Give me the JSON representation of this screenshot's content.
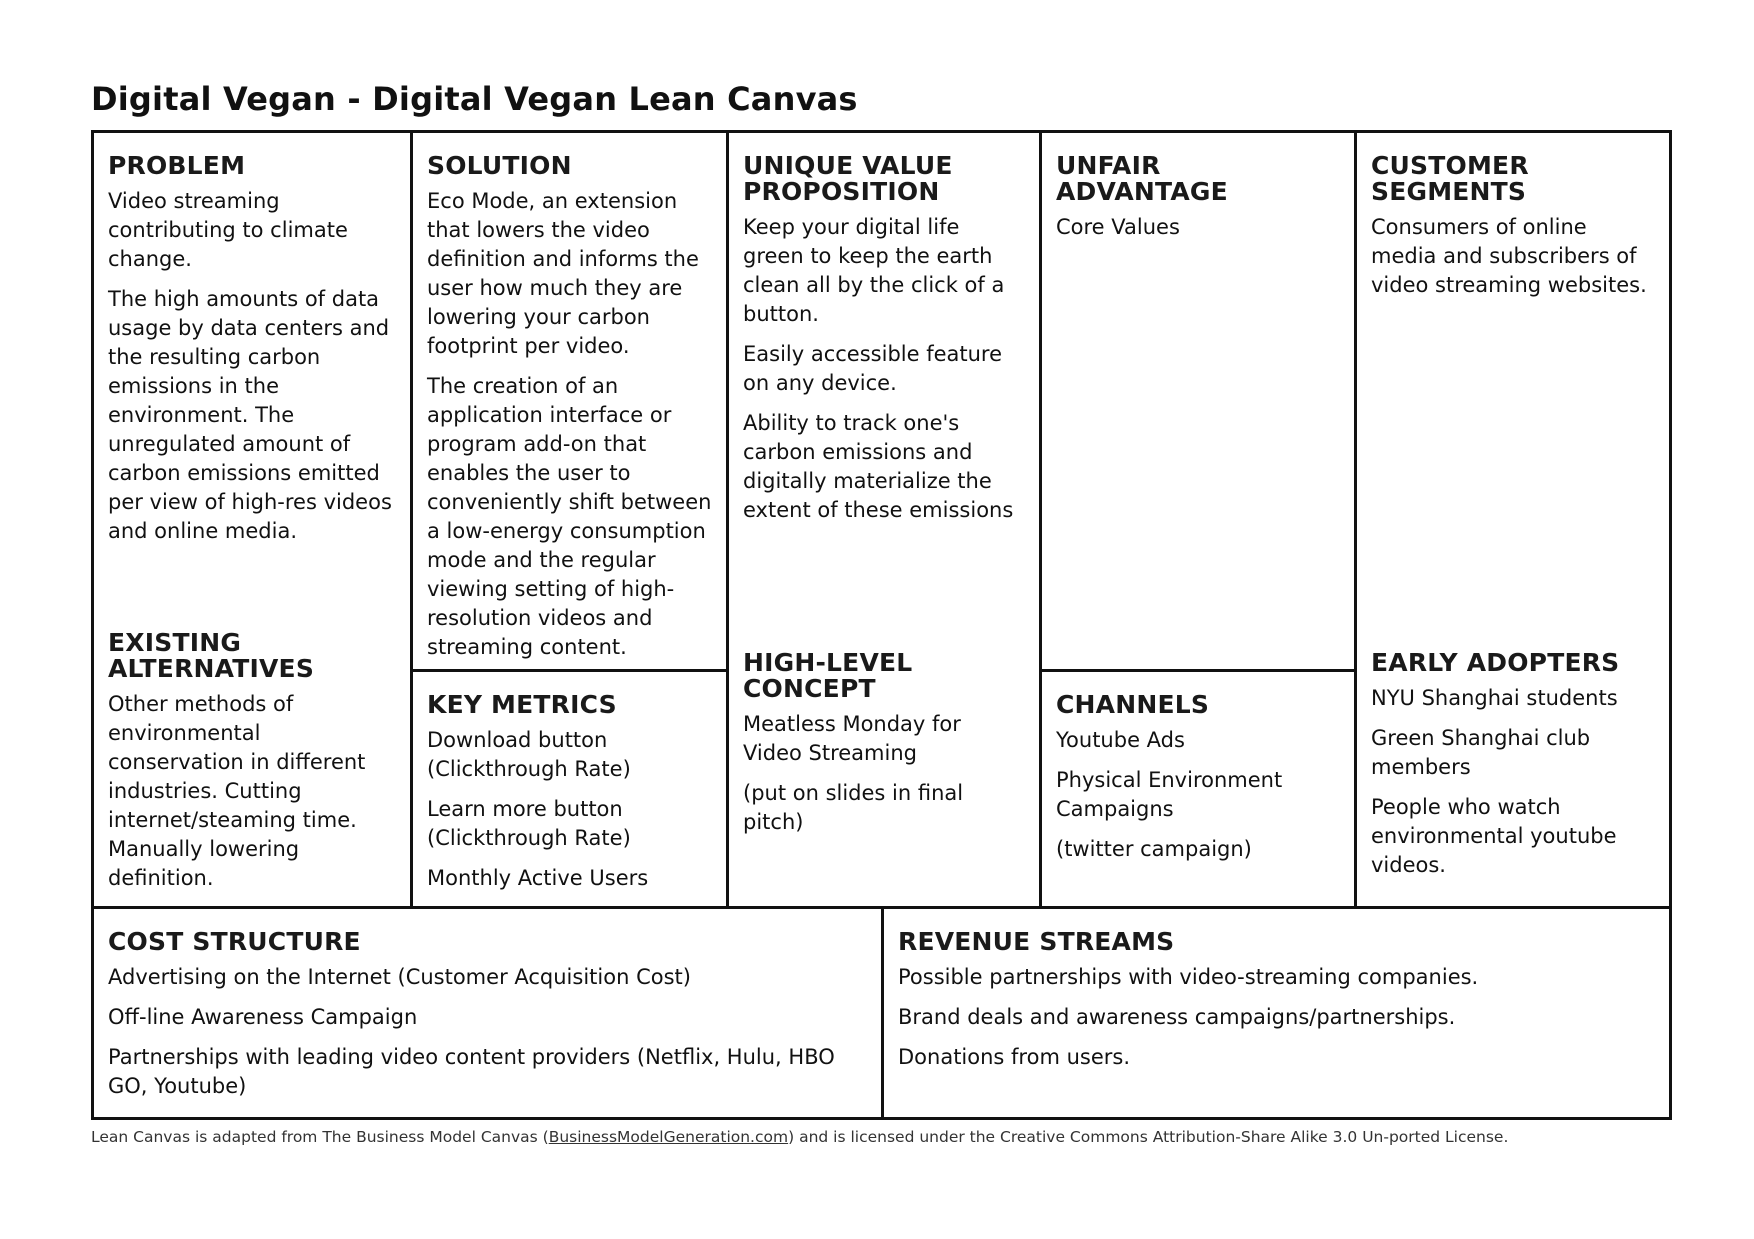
{
  "title": "Digital Vegan - Digital Vegan Lean Canvas",
  "canvas": {
    "problem": {
      "heading": "PROBLEM",
      "items": [
        "Video streaming contributing to climate change.",
        "The high amounts of data usage by data centers and the resulting carbon emissions in the environment. The unregulated amount of carbon emissions emitted per view of high-res videos and online media."
      ]
    },
    "existing_alternatives": {
      "heading": "EXISTING ALTERNATIVES",
      "items": [
        "Other methods of environmental conservation in different industries. Cutting internet/steaming time. Manually lowering definition."
      ]
    },
    "solution": {
      "heading": "SOLUTION",
      "items": [
        "Eco Mode, an extension that lowers the video definition and informs the user how much they are lowering your carbon footprint per video.",
        "The creation of an application interface or program add-on that enables the user to conveniently shift between a low-energy consumption mode and the regular viewing setting of high-resolution videos and streaming content."
      ]
    },
    "key_metrics": {
      "heading": "KEY METRICS",
      "items": [
        "Download button (Clickthrough Rate)",
        "Learn more button (Clickthrough Rate)",
        "Monthly Active Users"
      ]
    },
    "unique_value_proposition": {
      "heading": "UNIQUE VALUE PROPOSITION",
      "items": [
        "Keep your digital life green to keep the earth clean all by the click of a button.",
        "Easily accessible feature on any device.",
        "Ability to track one's carbon emissions and digitally materialize the extent of these emissions"
      ]
    },
    "high_level_concept": {
      "heading": "HIGH-LEVEL CONCEPT",
      "items": [
        "Meatless Monday for Video Streaming",
        "(put on slides in final pitch)"
      ]
    },
    "unfair_advantage": {
      "heading": "UNFAIR ADVANTAGE",
      "items": [
        "Core Values"
      ]
    },
    "channels": {
      "heading": "CHANNELS",
      "items": [
        "Youtube Ads",
        "Physical Environment Campaigns",
        "(twitter campaign)"
      ]
    },
    "customer_segments": {
      "heading": "CUSTOMER SEGMENTS",
      "items": [
        "Consumers of online media and subscribers of video streaming websites."
      ]
    },
    "early_adopters": {
      "heading": "EARLY ADOPTERS",
      "items": [
        "NYU Shanghai students",
        "Green Shanghai club members",
        "People who watch environmental youtube videos."
      ]
    },
    "cost_structure": {
      "heading": "COST STRUCTURE",
      "items": [
        "Advertising on the Internet (Customer Acquisition Cost)",
        "Off-line Awareness Campaign",
        "Partnerships with leading video content providers (Netflix, Hulu, HBO GO, Youtube)"
      ]
    },
    "revenue_streams": {
      "heading": "REVENUE STREAMS",
      "items": [
        "Possible partnerships with video-streaming companies.",
        "Brand deals and awareness campaigns/partnerships.",
        "Donations from users."
      ]
    }
  },
  "footer": {
    "prefix": "Lean Canvas is adapted from The Business Model Canvas (",
    "link": "BusinessModelGeneration.com",
    "suffix": ") and is licensed under the Creative Commons Attribution-Share Alike 3.0 Un-ported License."
  }
}
